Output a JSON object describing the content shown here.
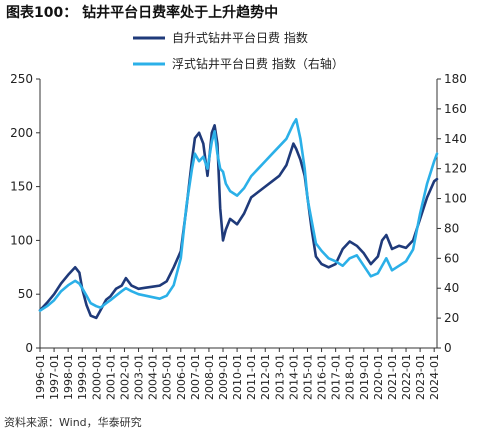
{
  "title": "图表100： 钻井平台日费率处于上升趋势中",
  "source": "资料来源：Wind，华泰研究",
  "chart_data": {
    "type": "line",
    "title": "图表100： 钻井平台日费率处于上升趋势中",
    "x_labels": [
      "1996-01",
      "1997-01",
      "1998-01",
      "1999-01",
      "2000-01",
      "2001-01",
      "2002-01",
      "2003-01",
      "2004-01",
      "2005-01",
      "2006-01",
      "2007-01",
      "2008-01",
      "2009-01",
      "2010-01",
      "2011-01",
      "2012-01",
      "2013-01",
      "2014-01",
      "2015-01",
      "2016-01",
      "2017-01",
      "2018-01",
      "2019-01",
      "2020-01",
      "2021-01",
      "2022-01",
      "2023-01",
      "2024-01"
    ],
    "x_range": [
      1996.0,
      2024.2
    ],
    "grid": false,
    "legend_position": "top",
    "y_left": {
      "min": 0,
      "max": 250,
      "ticks": [
        0,
        50,
        100,
        150,
        200,
        250
      ]
    },
    "y_right": {
      "min": 0,
      "max": 180,
      "ticks": [
        0,
        20,
        40,
        60,
        80,
        100,
        120,
        140,
        160,
        180
      ]
    },
    "series": [
      {
        "name": "自升式钻井平台日费 指数",
        "axis": "left",
        "color": "#1f3a7a",
        "x": [
          1996.0,
          1996.5,
          1997.0,
          1997.5,
          1998.0,
          1998.5,
          1998.8,
          1999.0,
          1999.3,
          1999.6,
          2000.0,
          2000.3,
          2000.7,
          2001.0,
          2001.4,
          2001.8,
          2002.1,
          2002.5,
          2003.0,
          2003.5,
          2004.0,
          2004.5,
          2005.0,
          2005.5,
          2006.0,
          2006.4,
          2006.8,
          2007.0,
          2007.3,
          2007.6,
          2007.9,
          2008.2,
          2008.4,
          2008.6,
          2008.8,
          2009.0,
          2009.2,
          2009.5,
          2010.0,
          2010.5,
          2011.0,
          2011.5,
          2012.0,
          2012.5,
          2013.0,
          2013.5,
          2014.0,
          2014.2,
          2014.5,
          2014.8,
          2015.0,
          2015.3,
          2015.6,
          2016.0,
          2016.5,
          2017.0,
          2017.5,
          2018.0,
          2018.5,
          2019.0,
          2019.5,
          2020.0,
          2020.3,
          2020.6,
          2021.0,
          2021.5,
          2022.0,
          2022.5,
          2023.0,
          2023.5,
          2024.0,
          2024.2
        ],
        "y": [
          35,
          42,
          50,
          60,
          68,
          75,
          70,
          55,
          40,
          30,
          28,
          35,
          45,
          48,
          55,
          58,
          65,
          58,
          55,
          56,
          57,
          58,
          62,
          75,
          90,
          130,
          175,
          195,
          200,
          190,
          160,
          200,
          207,
          190,
          130,
          100,
          110,
          120,
          115,
          125,
          140,
          145,
          150,
          155,
          160,
          170,
          190,
          185,
          175,
          160,
          140,
          110,
          85,
          78,
          75,
          78,
          92,
          99,
          95,
          88,
          78,
          85,
          100,
          105,
          92,
          95,
          93,
          100,
          120,
          140,
          155,
          157
        ]
      },
      {
        "name": "浮式钻井平台日费 指数（右轴）",
        "axis": "right",
        "color": "#2bb0e8",
        "x": [
          1996.0,
          1996.5,
          1997.0,
          1997.5,
          1998.0,
          1998.5,
          1998.8,
          1999.0,
          1999.3,
          1999.6,
          2000.0,
          2000.3,
          2000.7,
          2001.0,
          2001.4,
          2001.8,
          2002.1,
          2002.5,
          2003.0,
          2003.5,
          2004.0,
          2004.5,
          2005.0,
          2005.5,
          2006.0,
          2006.4,
          2006.8,
          2007.0,
          2007.3,
          2007.6,
          2007.9,
          2008.2,
          2008.4,
          2008.6,
          2008.8,
          2009.0,
          2009.2,
          2009.5,
          2010.0,
          2010.5,
          2011.0,
          2011.5,
          2012.0,
          2012.5,
          2013.0,
          2013.5,
          2014.0,
          2014.2,
          2014.5,
          2014.8,
          2015.0,
          2015.3,
          2015.6,
          2016.0,
          2016.5,
          2017.0,
          2017.5,
          2018.0,
          2018.5,
          2019.0,
          2019.5,
          2020.0,
          2020.3,
          2020.6,
          2021.0,
          2021.5,
          2022.0,
          2022.5,
          2023.0,
          2023.5,
          2024.0,
          2024.2
        ],
        "y": [
          25,
          28,
          32,
          38,
          42,
          45,
          43,
          40,
          35,
          30,
          28,
          27,
          30,
          32,
          35,
          38,
          40,
          38,
          36,
          35,
          34,
          33,
          35,
          42,
          60,
          95,
          120,
          130,
          125,
          128,
          120,
          138,
          145,
          130,
          120,
          118,
          110,
          105,
          102,
          107,
          115,
          120,
          125,
          130,
          135,
          140,
          150,
          153,
          140,
          120,
          100,
          85,
          70,
          65,
          60,
          58,
          55,
          60,
          62,
          55,
          48,
          50,
          55,
          60,
          52,
          55,
          58,
          66,
          90,
          110,
          125,
          130
        ]
      }
    ]
  }
}
